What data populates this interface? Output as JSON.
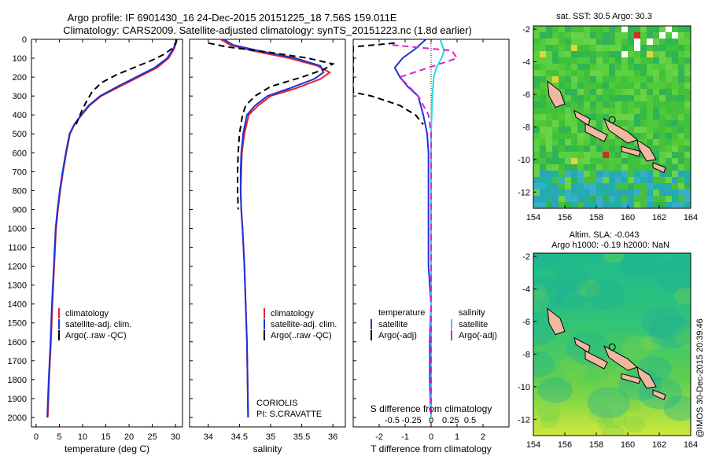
{
  "title": {
    "line1": "Argo profile: IF 6901430_16 24-Dec-2015 20151225_18 7.56S 159.011E",
    "line2": "Climatology: CARS2009. Satellite-adjusted climatology: synTS_20151223.nc (1.8d earlier)"
  },
  "watermark": "@IMOS 30-Dec-2015 20:39:46",
  "colors": {
    "climatology": "#e8202a",
    "satellite": "#1a33d6",
    "argo": "#000000",
    "sal_sat": "#22d8e8",
    "sal_argo": "#e020d0"
  },
  "depth_axis": {
    "ylim": [
      0,
      2050
    ],
    "ticks": [
      0,
      100,
      200,
      300,
      400,
      500,
      600,
      700,
      800,
      900,
      1000,
      1100,
      1200,
      1300,
      1400,
      1500,
      1600,
      1700,
      1800,
      1900,
      2000
    ]
  },
  "chart_data": [
    {
      "type": "line",
      "id": "temperature",
      "xlabel": "temperature (deg C)",
      "xlim": [
        -1,
        31.5
      ],
      "xticks": [
        0,
        5,
        10,
        15,
        20,
        25,
        30
      ],
      "legend": {
        "position": "bottom-center",
        "entries": [
          "climatology",
          "satellite-adj. clim.",
          "Argo(..raw -QC)"
        ]
      },
      "series": [
        {
          "name": "climatology",
          "style": "solid",
          "points": [
            [
              30.3,
              0
            ],
            [
              30.1,
              20
            ],
            [
              29.7,
              50
            ],
            [
              28.5,
              100
            ],
            [
              26,
              150
            ],
            [
              22,
              200
            ],
            [
              18,
              250
            ],
            [
              14,
              300
            ],
            [
              11.5,
              350
            ],
            [
              9.8,
              400
            ],
            [
              8.3,
              450
            ],
            [
              7.3,
              500
            ],
            [
              6.5,
              600
            ],
            [
              5.8,
              700
            ],
            [
              5.2,
              800
            ],
            [
              4.7,
              900
            ],
            [
              4.3,
              1000
            ],
            [
              3.9,
              1200
            ],
            [
              3.5,
              1400
            ],
            [
              3.2,
              1600
            ],
            [
              2.8,
              1800
            ],
            [
              2.5,
              2000
            ]
          ]
        },
        {
          "name": "satellite-adj. clim.",
          "style": "solid",
          "points": [
            [
              30.3,
              0
            ],
            [
              30.1,
              20
            ],
            [
              29.5,
              50
            ],
            [
              28.2,
              100
            ],
            [
              25.5,
              150
            ],
            [
              21.5,
              200
            ],
            [
              17.5,
              250
            ],
            [
              13.8,
              300
            ],
            [
              11.3,
              350
            ],
            [
              9.7,
              400
            ],
            [
              8.2,
              450
            ],
            [
              7.2,
              500
            ],
            [
              6.4,
              600
            ],
            [
              5.7,
              700
            ],
            [
              5.1,
              800
            ],
            [
              4.6,
              900
            ],
            [
              4.2,
              1000
            ],
            [
              3.8,
              1200
            ],
            [
              3.4,
              1400
            ],
            [
              3.1,
              1600
            ],
            [
              2.7,
              1800
            ],
            [
              2.4,
              2000
            ]
          ]
        },
        {
          "name": "Argo(..raw -QC)",
          "style": "dashed",
          "points": [
            [
              30.2,
              0
            ],
            [
              30,
              20
            ],
            [
              29.2,
              50
            ],
            [
              27.5,
              80
            ],
            [
              25,
              110
            ],
            [
              21.5,
              145
            ],
            [
              17.5,
              185
            ],
            [
              14,
              230
            ],
            [
              12,
              280
            ],
            [
              10.8,
              330
            ],
            [
              9.8,
              380
            ],
            [
              8.6,
              450
            ]
          ]
        }
      ]
    },
    {
      "type": "line",
      "id": "salinity",
      "xlabel": "salinity",
      "xlim": [
        33.7,
        36.2
      ],
      "xticks": [
        34,
        34.5,
        35,
        35.5,
        36
      ],
      "legend": {
        "position": "bottom-center",
        "entries": [
          "climatology",
          "satellite-adj. clim.",
          "Argo(..raw -QC)"
        ]
      },
      "annotations": [
        "CORIOLIS",
        "PI: S.CRAVATTE"
      ],
      "series": [
        {
          "name": "climatology",
          "style": "solid",
          "points": [
            [
              34.2,
              0
            ],
            [
              34.35,
              30
            ],
            [
              34.7,
              60
            ],
            [
              35.3,
              100
            ],
            [
              35.75,
              140
            ],
            [
              35.95,
              175
            ],
            [
              35.8,
              210
            ],
            [
              35.4,
              260
            ],
            [
              35.0,
              300
            ],
            [
              34.8,
              350
            ],
            [
              34.65,
              400
            ],
            [
              34.58,
              500
            ],
            [
              34.54,
              600
            ],
            [
              34.53,
              700
            ],
            [
              34.52,
              800
            ],
            [
              34.53,
              900
            ],
            [
              34.55,
              1000
            ],
            [
              34.58,
              1200
            ],
            [
              34.6,
              1400
            ],
            [
              34.62,
              1600
            ],
            [
              34.63,
              1800
            ],
            [
              34.64,
              2000
            ]
          ]
        },
        {
          "name": "satellite-adj. clim.",
          "style": "solid",
          "points": [
            [
              34.25,
              0
            ],
            [
              34.4,
              30
            ],
            [
              34.8,
              60
            ],
            [
              35.4,
              100
            ],
            [
              35.8,
              140
            ],
            [
              35.85,
              175
            ],
            [
              35.7,
              210
            ],
            [
              35.3,
              260
            ],
            [
              34.95,
              300
            ],
            [
              34.75,
              350
            ],
            [
              34.62,
              400
            ],
            [
              34.56,
              500
            ],
            [
              34.53,
              600
            ],
            [
              34.52,
              700
            ],
            [
              34.52,
              800
            ],
            [
              34.53,
              900
            ],
            [
              34.55,
              1000
            ],
            [
              34.58,
              1200
            ],
            [
              34.6,
              1400
            ],
            [
              34.62,
              1600
            ],
            [
              34.63,
              1800
            ],
            [
              34.64,
              2000
            ]
          ]
        },
        {
          "name": "Argo(..raw -QC)",
          "style": "dashed",
          "points": [
            [
              34.0,
              20
            ],
            [
              34.3,
              40
            ],
            [
              35.0,
              70
            ],
            [
              35.6,
              100
            ],
            [
              36.0,
              130
            ],
            [
              35.85,
              160
            ],
            [
              35.5,
              200
            ],
            [
              35.0,
              250
            ],
            [
              34.75,
              300
            ],
            [
              34.6,
              350
            ],
            [
              34.55,
              400
            ],
            [
              34.5,
              500
            ],
            [
              34.48,
              600
            ],
            [
              34.47,
              700
            ],
            [
              34.47,
              800
            ],
            [
              34.48,
              900
            ]
          ]
        }
      ]
    },
    {
      "type": "line",
      "id": "differences",
      "xlabel_top": "S difference from climatology",
      "xlabel": "T difference from climatology",
      "xlim": [
        -3,
        3
      ],
      "xticks_T": [
        -2,
        -1,
        0,
        1,
        2
      ],
      "s_ticks": [
        "-0.5",
        "-0.25",
        "0",
        "0.25",
        "0.5"
      ],
      "legend": {
        "position": "bottom-center",
        "groups": [
          {
            "title": "temperature",
            "entries": [
              "satellite",
              "Argo(-adj)"
            ]
          },
          {
            "title": "salinity",
            "entries": [
              "satellite",
              "Argo(-adj)"
            ]
          }
        ]
      },
      "series": [
        {
          "name": "temperature satellite",
          "style": "solid",
          "points": [
            [
              -0.2,
              0
            ],
            [
              -0.6,
              50
            ],
            [
              -1.1,
              100
            ],
            [
              -1.4,
              150
            ],
            [
              -1.2,
              200
            ],
            [
              -0.9,
              250
            ],
            [
              -0.5,
              300
            ],
            [
              -0.3,
              400
            ],
            [
              -0.15,
              500
            ],
            [
              -0.1,
              600
            ],
            [
              -0.1,
              800
            ],
            [
              -0.1,
              1000
            ],
            [
              -0.1,
              1200
            ],
            [
              0,
              1400
            ],
            [
              -0.05,
              1600
            ],
            [
              -0.05,
              1800
            ],
            [
              0,
              2000
            ]
          ]
        },
        {
          "name": "temperature Argo(-adj)",
          "style": "dashed",
          "points": [
            [
              -1.4,
              20
            ],
            [
              -3,
              40
            ],
            [
              -3,
              80
            ],
            [
              -3,
              120
            ],
            [
              -3,
              160
            ],
            [
              -3,
              220
            ],
            [
              -3,
              280
            ],
            [
              -2.3,
              300
            ],
            [
              -1.2,
              350
            ],
            [
              -0.6,
              400
            ],
            [
              -0.3,
              450
            ]
          ]
        },
        {
          "name": "salinity satellite",
          "style": "solid",
          "points": [
            [
              0.35,
              0
            ],
            [
              0.5,
              60
            ],
            [
              0.4,
              100
            ],
            [
              0.2,
              150
            ],
            [
              0.1,
              200
            ],
            [
              0.05,
              300
            ],
            [
              0.02,
              400
            ],
            [
              0,
              500
            ],
            [
              0,
              700
            ],
            [
              0,
              1000
            ],
            [
              0,
              1500
            ],
            [
              0,
              2000
            ]
          ]
        },
        {
          "name": "salinity Argo(-adj)",
          "style": "dashed",
          "points": [
            [
              -1.5,
              30
            ],
            [
              0.8,
              60
            ],
            [
              1.0,
              100
            ],
            [
              -1.2,
              200
            ],
            [
              -0.5,
              300
            ],
            [
              -0.1,
              400
            ],
            [
              0,
              500
            ],
            [
              0,
              700
            ],
            [
              0,
              1000
            ],
            [
              0,
              1500
            ],
            [
              0,
              2000
            ]
          ]
        }
      ]
    },
    {
      "type": "heatmap",
      "id": "sst-map",
      "title": "sat. SST: 30.5 Argo: 30.3",
      "xlim": [
        154,
        164
      ],
      "ylim": [
        -13,
        -1.8
      ],
      "xticks": [
        154,
        156,
        158,
        160,
        162,
        164
      ],
      "yticks": [
        -2,
        -4,
        -6,
        -8,
        -10,
        -12
      ],
      "float_position": [
        159.011,
        -7.56
      ]
    },
    {
      "type": "heatmap",
      "id": "sla-map",
      "title_line1": "Altim. SLA: -0.043",
      "title_line2": "Argo h1000: -0.19 h2000: NaN",
      "xlim": [
        154,
        164
      ],
      "ylim": [
        -13,
        -1.8
      ],
      "xticks": [
        154,
        156,
        158,
        160,
        162,
        164
      ],
      "yticks": [
        -2,
        -4,
        -6,
        -8,
        -10,
        -12
      ],
      "float_position": [
        159.011,
        -7.56
      ]
    }
  ]
}
